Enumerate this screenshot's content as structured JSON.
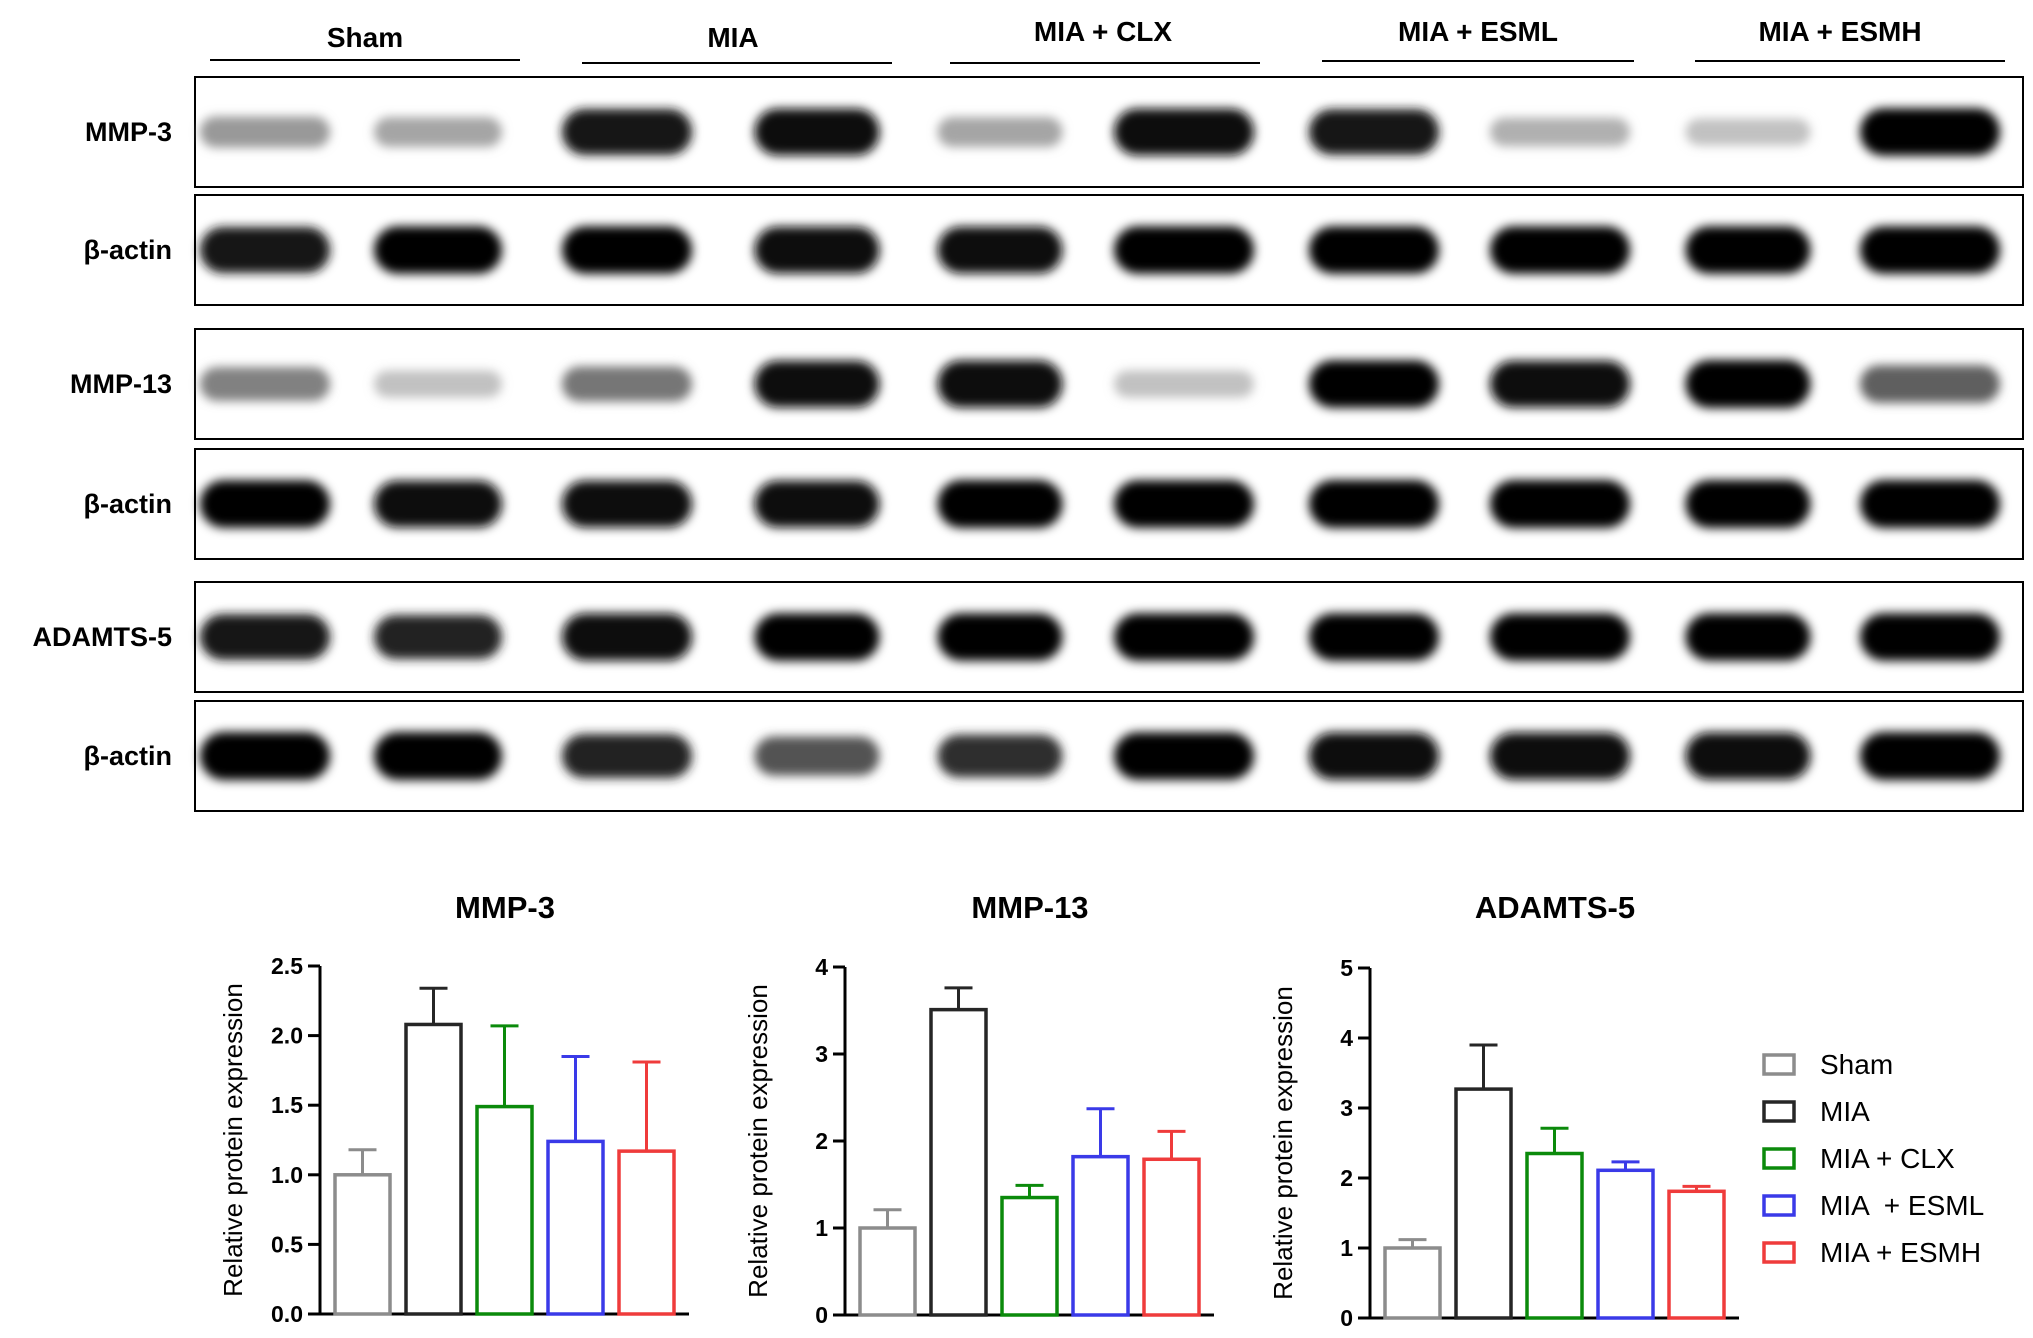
{
  "blot": {
    "groups": [
      "Sham",
      "MIA",
      "MIA + CLX",
      "MIA + ESML",
      "MIA + ESMH"
    ],
    "panels": [
      {
        "label": "MMP-3",
        "intensity": [
          0.35,
          0.3,
          0.92,
          0.95,
          0.3,
          0.95,
          0.9,
          0.25,
          0.18,
          0.98
        ]
      },
      {
        "label": "β-actin",
        "intensity": [
          0.92,
          0.98,
          0.98,
          0.95,
          0.95,
          0.98,
          0.98,
          0.98,
          0.98,
          0.98
        ]
      },
      {
        "label": "MMP-13",
        "intensity": [
          0.45,
          0.18,
          0.5,
          0.95,
          0.97,
          0.18,
          0.98,
          0.95,
          1.0,
          0.6
        ]
      },
      {
        "label": "β-actin",
        "intensity": [
          0.98,
          0.95,
          0.95,
          0.95,
          1.0,
          0.98,
          1.0,
          1.0,
          1.0,
          1.0
        ]
      },
      {
        "label": "ADAMTS-5",
        "intensity": [
          0.9,
          0.85,
          0.97,
          0.98,
          0.98,
          0.98,
          0.98,
          0.98,
          0.98,
          0.98
        ]
      },
      {
        "label": "β-actin",
        "intensity": [
          1.0,
          1.0,
          0.85,
          0.65,
          0.8,
          0.98,
          0.97,
          0.97,
          0.97,
          1.0
        ]
      }
    ]
  },
  "chart_data": [
    {
      "type": "bar",
      "title": "MMP-3",
      "ylabel": "Relative protein expression",
      "ylim": [
        0,
        2.5
      ],
      "yticks": [
        "0.0",
        "0.5",
        "1.0",
        "1.5",
        "2.0",
        "2.5"
      ],
      "ytick_values": [
        0,
        0.5,
        1.0,
        1.5,
        2.0,
        2.5
      ],
      "categories": [
        "Sham",
        "MIA",
        "MIA + CLX",
        "MIA  + ESML",
        "MIA + ESMH"
      ],
      "values": [
        1.0,
        2.08,
        1.49,
        1.24,
        1.17
      ],
      "errors": [
        0.18,
        0.26,
        0.58,
        0.61,
        0.64
      ]
    },
    {
      "type": "bar",
      "title": "MMP-13",
      "ylabel": "Relative protein expression",
      "ylim": [
        0,
        4
      ],
      "yticks": [
        "0",
        "1",
        "2",
        "3",
        "4"
      ],
      "ytick_values": [
        0,
        1,
        2,
        3,
        4
      ],
      "categories": [
        "Sham",
        "MIA",
        "MIA + CLX",
        "MIA  + ESML",
        "MIA + ESMH"
      ],
      "values": [
        1.0,
        3.51,
        1.35,
        1.82,
        1.79
      ],
      "errors": [
        0.21,
        0.25,
        0.14,
        0.55,
        0.32
      ]
    },
    {
      "type": "bar",
      "title": "ADAMTS-5",
      "ylabel": "Relative protein expression",
      "ylim": [
        0,
        5
      ],
      "yticks": [
        "0",
        "1",
        "2",
        "3",
        "4",
        "5"
      ],
      "ytick_values": [
        0,
        1,
        2,
        3,
        4,
        5
      ],
      "categories": [
        "Sham",
        "MIA",
        "MIA + CLX",
        "MIA  + ESML",
        "MIA + ESMH"
      ],
      "values": [
        1.0,
        3.27,
        2.35,
        2.11,
        1.81
      ],
      "errors": [
        0.12,
        0.63,
        0.36,
        0.12,
        0.07
      ]
    }
  ],
  "legend": {
    "entries": [
      "Sham",
      "MIA",
      "MIA + CLX",
      "MIA  + ESML",
      "MIA + ESMH"
    ],
    "colors": [
      "#8c8c8c",
      "#262626",
      "#0b8a0b",
      "#3a3ae8",
      "#ef3b3b"
    ]
  }
}
